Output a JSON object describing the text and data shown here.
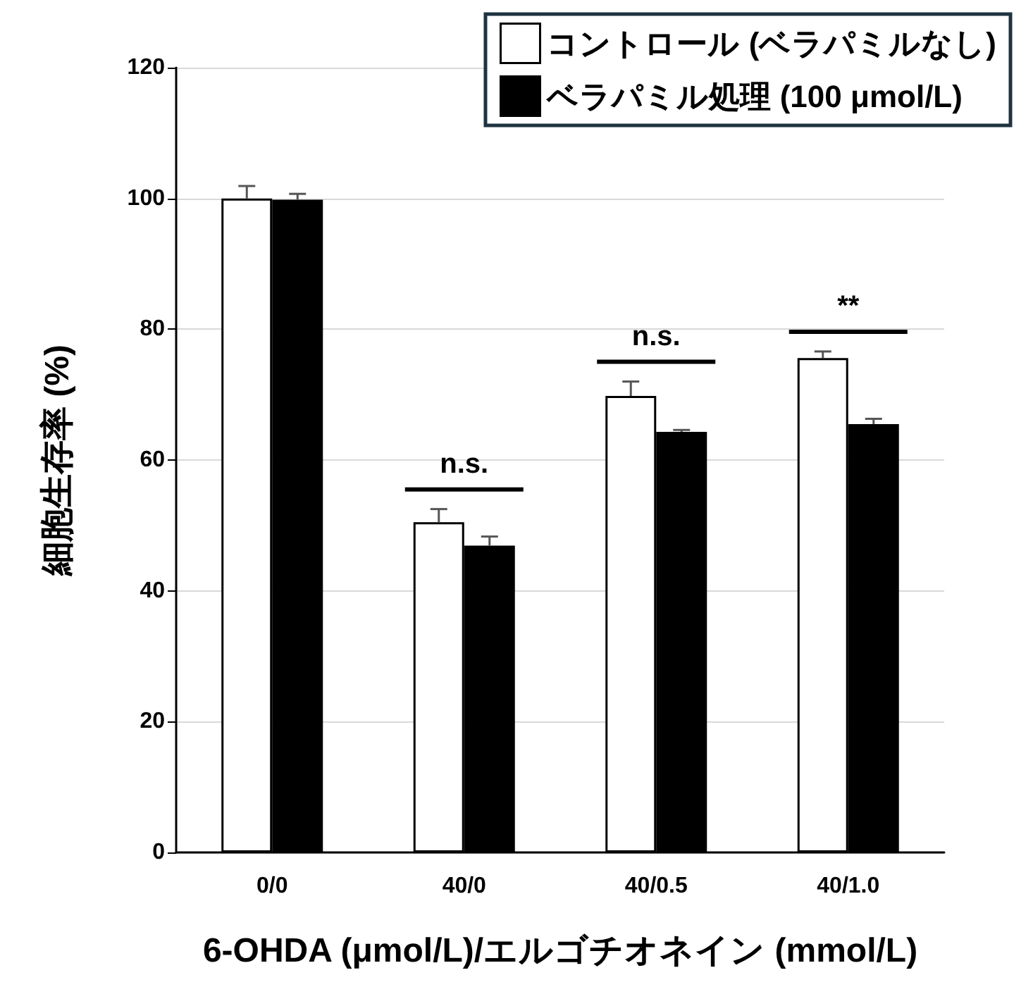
{
  "chart_data": {
    "type": "bar",
    "xlabel": "6-OHDA (μmol/L)/エルゴチオネイン (mmol/L)",
    "ylabel": "細胞生存率 (%)",
    "categories": [
      "0/0",
      "40/0",
      "40/0.5",
      "40/1.0"
    ],
    "series": [
      {
        "name": "コントロール (ベラパミルなし)",
        "color": "#ffffff",
        "values": [
          100,
          50.5,
          69.8,
          75.6
        ],
        "errors": [
          [
            100,
            101.9
          ],
          [
            50.5,
            52.5
          ],
          [
            69.8,
            72.0
          ],
          [
            75.6,
            76.6
          ]
        ]
      },
      {
        "name": "ベラパミル処理 (100 μmol/L)",
        "color": "#000000",
        "values": [
          99.8,
          46.9,
          64.3,
          65.5
        ],
        "errors": [
          [
            99.8,
            100.7
          ],
          [
            46.9,
            48.3
          ],
          [
            64.3,
            64.6
          ],
          [
            65.5,
            66.3
          ]
        ]
      }
    ],
    "ylim": [
      0,
      120
    ],
    "yticks": [
      0,
      20,
      40,
      60,
      80,
      100,
      120
    ],
    "grid": "y",
    "legend": "top right",
    "annotations": [
      "n.s.",
      "n.s.",
      "**"
    ]
  }
}
